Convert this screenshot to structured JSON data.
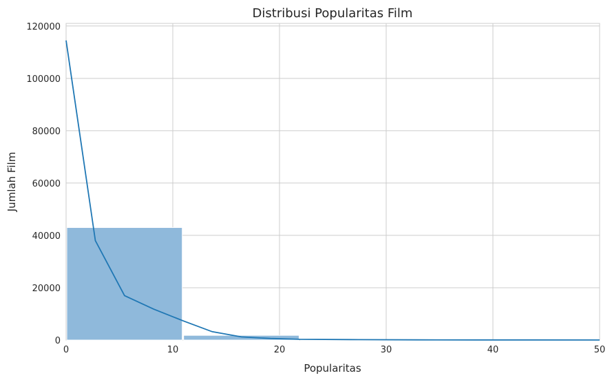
{
  "chart_data": {
    "type": "bar",
    "title": "Distribusi Popularitas Film",
    "xlabel": "Popularitas",
    "ylabel": "Jumlah Film",
    "xlim": [
      0,
      50
    ],
    "ylim": [
      0,
      121000
    ],
    "xticks": [
      "0",
      "10",
      "20",
      "30",
      "40",
      "50"
    ],
    "yticks": [
      "0",
      "20000",
      "40000",
      "60000",
      "80000",
      "100000",
      "120000"
    ],
    "grid": true,
    "legend": "none",
    "colors": {
      "bar": "#8fb9db",
      "line": "#1f77b4",
      "grid": "#cccccc",
      "background": "#ffffff"
    },
    "histogram": [
      {
        "x0": 0,
        "x1": 10.95,
        "count": 43000
      },
      {
        "x0": 10.95,
        "x1": 21.9,
        "count": 1800
      },
      {
        "x0": 21.9,
        "x1": 32.85,
        "count": 60
      },
      {
        "x0": 32.85,
        "x1": 43.8,
        "count": 20
      },
      {
        "x0": 43.8,
        "x1": 50,
        "count": 10
      }
    ],
    "kde": {
      "x": [
        0,
        2.74,
        5.48,
        8.21,
        10.95,
        13.69,
        16.43,
        19.16,
        21.9,
        27.4,
        32.9,
        38.4,
        43.9,
        50
      ],
      "y": [
        114500,
        38000,
        17000,
        11800,
        7400,
        3200,
        1200,
        600,
        300,
        150,
        90,
        60,
        40,
        30
      ]
    }
  }
}
